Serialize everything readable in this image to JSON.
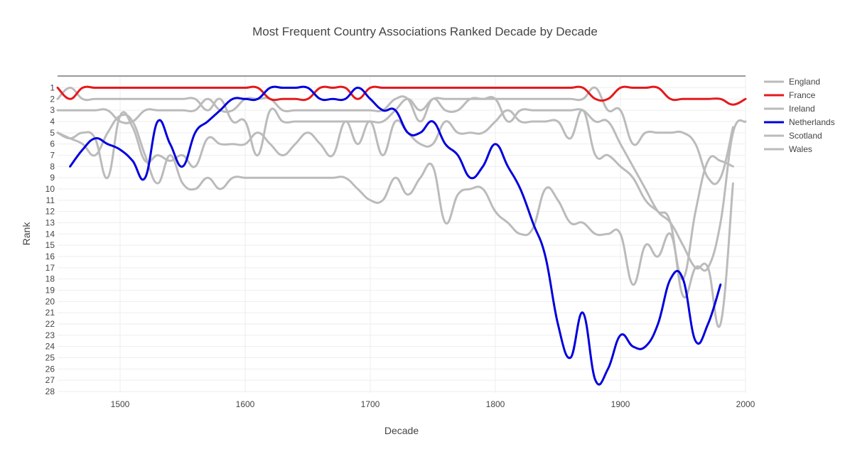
{
  "chart_data": {
    "type": "line",
    "title": "Most Frequent Country Associations Ranked Decade by Decade",
    "xlabel": "Decade",
    "ylabel": "Rank",
    "xlim": [
      1450,
      2000
    ],
    "ylim": [
      28,
      1
    ],
    "y_reversed": true,
    "xticks": [
      1500,
      1600,
      1700,
      1800,
      1900,
      2000
    ],
    "yticks": [
      1,
      2,
      3,
      4,
      5,
      6,
      7,
      8,
      9,
      10,
      11,
      12,
      13,
      14,
      15,
      16,
      17,
      18,
      19,
      20,
      21,
      22,
      23,
      24,
      25,
      26,
      27,
      28
    ],
    "grid": true,
    "legend_position": "right",
    "series": [
      {
        "name": "England",
        "color": "#bbbbbb",
        "x": [
          1450,
          1460,
          1470,
          1480,
          1490,
          1500,
          1510,
          1520,
          1530,
          1540,
          1550,
          1560,
          1570,
          1580,
          1590,
          1600,
          1610,
          1620,
          1630,
          1640,
          1650,
          1660,
          1670,
          1680,
          1690,
          1700,
          1710,
          1720,
          1730,
          1740,
          1750,
          1760,
          1770,
          1780,
          1790,
          1800,
          1810,
          1820,
          1830,
          1840,
          1850,
          1860,
          1870,
          1880,
          1890,
          1900,
          1910,
          1920,
          1930,
          1940,
          1950,
          1960,
          1970,
          1980,
          1990
        ],
        "y": [
          2,
          1,
          2,
          2,
          2,
          2,
          2,
          2,
          2,
          2,
          2,
          2,
          3,
          2,
          4,
          4,
          7,
          3,
          4,
          4,
          4,
          4,
          4,
          4,
          4,
          4,
          4,
          3,
          2,
          3,
          2,
          2,
          2,
          2,
          2,
          2,
          2,
          2,
          2,
          2,
          2,
          2,
          2,
          1,
          3,
          3,
          6,
          5,
          5,
          5,
          5,
          6,
          9,
          9,
          4.5
        ]
      },
      {
        "name": "France",
        "color": "#e41a1c",
        "x": [
          1450,
          1460,
          1470,
          1480,
          1490,
          1500,
          1510,
          1520,
          1530,
          1540,
          1550,
          1560,
          1570,
          1580,
          1590,
          1600,
          1610,
          1620,
          1630,
          1640,
          1650,
          1660,
          1670,
          1680,
          1690,
          1700,
          1710,
          1720,
          1730,
          1740,
          1750,
          1760,
          1770,
          1780,
          1790,
          1800,
          1810,
          1820,
          1830,
          1840,
          1850,
          1860,
          1870,
          1880,
          1890,
          1900,
          1910,
          1920,
          1930,
          1940,
          1950,
          1960,
          1970,
          1980,
          1990,
          2000
        ],
        "y": [
          1,
          2,
          1,
          1,
          1,
          1,
          1,
          1,
          1,
          1,
          1,
          1,
          1,
          1,
          1,
          1,
          1,
          2,
          2,
          2,
          2,
          1,
          1,
          1,
          2,
          1,
          1,
          1,
          1,
          1,
          1,
          1,
          1,
          1,
          1,
          1,
          1,
          1,
          1,
          1,
          1,
          1,
          1,
          2,
          2,
          1,
          1,
          1,
          1,
          2,
          2,
          2,
          2,
          2,
          2.5,
          2
        ]
      },
      {
        "name": "Ireland",
        "color": "#bbbbbb",
        "x": [
          1450,
          1460,
          1470,
          1480,
          1490,
          1500,
          1510,
          1520,
          1530,
          1540,
          1550,
          1560,
          1570,
          1580,
          1590,
          1600,
          1610,
          1620,
          1630,
          1640,
          1650,
          1660,
          1670,
          1680,
          1690,
          1700,
          1710,
          1720,
          1730,
          1740,
          1750,
          1760,
          1770,
          1780,
          1790,
          1800,
          1810,
          1820,
          1830,
          1840,
          1850,
          1860,
          1870,
          1880,
          1890,
          1900,
          1910,
          1920,
          1930,
          1940,
          1950,
          1960,
          1970,
          1980,
          1990
        ],
        "y": [
          3,
          3,
          3,
          3,
          3,
          4,
          4,
          3,
          3,
          3,
          3,
          3,
          2,
          3,
          3,
          2,
          2,
          2,
          3,
          3,
          3,
          3,
          3,
          3,
          3,
          3,
          3,
          2,
          2,
          4,
          2,
          3,
          3,
          2,
          2,
          2,
          4,
          3,
          3,
          3,
          3,
          3,
          3,
          4,
          4,
          6,
          8,
          10,
          12,
          13,
          15,
          17,
          17,
          22,
          9.5
        ]
      },
      {
        "name": "Netherlands",
        "color": "#0000dd",
        "x": [
          1460,
          1470,
          1480,
          1490,
          1500,
          1510,
          1520,
          1530,
          1540,
          1550,
          1560,
          1570,
          1580,
          1590,
          1600,
          1610,
          1620,
          1630,
          1640,
          1650,
          1660,
          1670,
          1680,
          1690,
          1700,
          1710,
          1720,
          1730,
          1740,
          1750,
          1760,
          1770,
          1780,
          1790,
          1800,
          1810,
          1820,
          1830,
          1840,
          1850,
          1860,
          1870,
          1880,
          1890,
          1900,
          1910,
          1920,
          1930,
          1940,
          1950,
          1960,
          1970,
          1980
        ],
        "y": [
          8,
          6.5,
          5.5,
          6,
          6.5,
          7.5,
          9,
          4,
          6,
          8,
          5,
          4,
          3,
          2,
          2,
          2,
          1,
          1,
          1,
          1,
          2,
          2,
          2,
          1,
          2,
          3,
          3,
          5,
          5,
          4,
          6,
          7,
          9,
          8,
          6,
          8,
          10,
          13,
          16,
          22,
          25,
          21,
          27,
          26,
          23,
          24,
          24,
          22,
          18,
          18,
          23.5,
          22,
          18.5
        ]
      },
      {
        "name": "Scotland",
        "color": "#bbbbbb",
        "x": [
          1450,
          1460,
          1470,
          1480,
          1490,
          1500,
          1510,
          1520,
          1530,
          1540,
          1550,
          1560,
          1570,
          1580,
          1590,
          1600,
          1610,
          1620,
          1630,
          1640,
          1650,
          1660,
          1670,
          1680,
          1690,
          1700,
          1710,
          1720,
          1730,
          1740,
          1750,
          1760,
          1770,
          1780,
          1790,
          1800,
          1810,
          1820,
          1830,
          1840,
          1850,
          1860,
          1870,
          1880,
          1890,
          1900,
          1910,
          1920,
          1930,
          1940,
          1950,
          1960,
          1970,
          1980,
          1990
        ],
        "y": [
          5,
          5.5,
          6,
          7,
          5,
          3.5,
          4,
          7,
          9.5,
          7,
          9.5,
          10,
          9,
          10,
          9,
          9,
          9,
          9,
          9,
          9,
          9,
          9,
          9,
          9,
          10,
          11,
          11,
          9,
          10.5,
          9,
          8,
          13,
          10.5,
          10,
          10,
          12,
          13,
          14,
          13.5,
          10,
          11,
          13,
          13,
          14,
          14,
          14,
          18.5,
          15,
          16,
          14,
          18,
          12,
          7.5,
          7.5,
          8
        ]
      },
      {
        "name": "Wales",
        "color": "#bbbbbb",
        "x": [
          1450,
          1460,
          1470,
          1480,
          1490,
          1500,
          1510,
          1520,
          1530,
          1540,
          1550,
          1560,
          1570,
          1580,
          1590,
          1600,
          1610,
          1620,
          1630,
          1640,
          1650,
          1660,
          1670,
          1680,
          1690,
          1700,
          1710,
          1720,
          1730,
          1740,
          1750,
          1760,
          1770,
          1780,
          1790,
          1800,
          1810,
          1820,
          1830,
          1840,
          1850,
          1860,
          1870,
          1880,
          1890,
          1900,
          1910,
          1920,
          1930,
          1940,
          1950,
          1960,
          1970,
          1980,
          1990,
          2000
        ],
        "y": [
          5,
          5.5,
          5,
          5.5,
          9,
          3.5,
          4.5,
          7.5,
          7,
          7.5,
          7,
          8,
          5.5,
          6,
          6,
          6,
          5,
          6,
          7,
          6,
          5,
          6,
          7,
          4,
          6,
          4,
          7,
          4,
          5,
          6,
          6,
          4,
          5,
          5,
          5,
          4,
          3,
          4,
          4,
          4,
          4,
          5.5,
          3,
          7,
          7,
          8,
          9,
          11,
          12,
          13,
          19.5,
          17,
          17,
          13,
          5,
          4
        ]
      }
    ]
  }
}
